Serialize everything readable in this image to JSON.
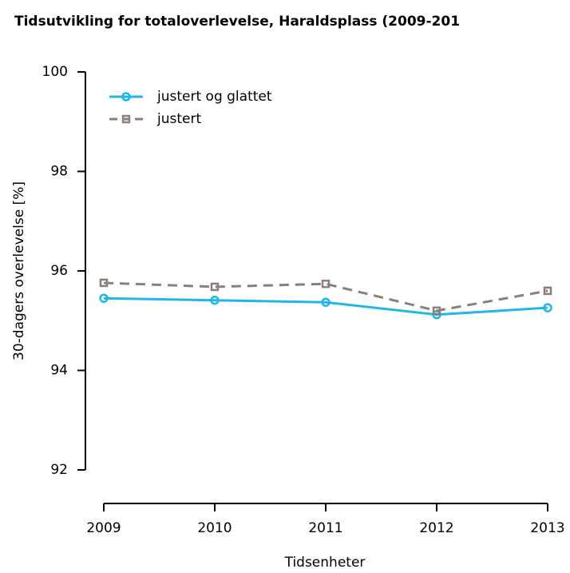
{
  "chart_data": {
    "type": "line",
    "title": "Tidsutvikling for totaloverlevelse, Haraldsplass (2009-201",
    "x_label": "Tidsenheter",
    "y_label": "30-dagers overlevelse [%]",
    "x": [
      2009,
      2010,
      2011,
      2012,
      2013
    ],
    "series": [
      {
        "name": "justert og glattet",
        "color": "#1fb7e8",
        "style": "solid",
        "marker": "circle",
        "values": [
          95.45,
          95.41,
          95.37,
          95.12,
          95.26
        ]
      },
      {
        "name": "justert",
        "color": "#8c7f78",
        "style": "dashed",
        "marker": "square",
        "values": [
          95.76,
          95.68,
          95.74,
          95.2,
          95.6
        ]
      }
    ],
    "xlim": [
      2009,
      2013
    ],
    "xticks": [
      2009,
      2010,
      2011,
      2012,
      2013
    ],
    "ylim": [
      92,
      100
    ],
    "yticks": [
      92,
      94,
      96,
      98,
      100
    ],
    "grid": false,
    "legend": "top-left"
  }
}
